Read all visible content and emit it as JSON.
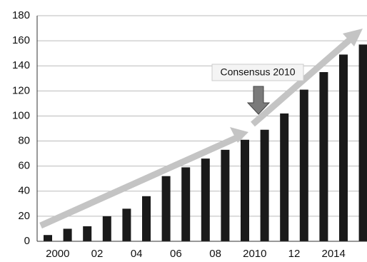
{
  "chart_data": {
    "type": "bar",
    "categories": [
      "2000",
      null,
      "02",
      null,
      "04",
      null,
      "06",
      null,
      "08",
      null,
      "2010",
      null,
      "12",
      null,
      "2014",
      null,
      null
    ],
    "values": [
      5,
      10,
      12,
      20,
      26,
      36,
      52,
      59,
      66,
      73,
      81,
      89,
      102,
      121,
      135,
      149,
      157
    ],
    "color": "#1a1a1a",
    "ylim": [
      0,
      180
    ],
    "yticks": [
      0,
      20,
      40,
      60,
      80,
      100,
      120,
      140,
      160,
      180
    ],
    "grid": true,
    "annotation": "Consensus 2010"
  }
}
